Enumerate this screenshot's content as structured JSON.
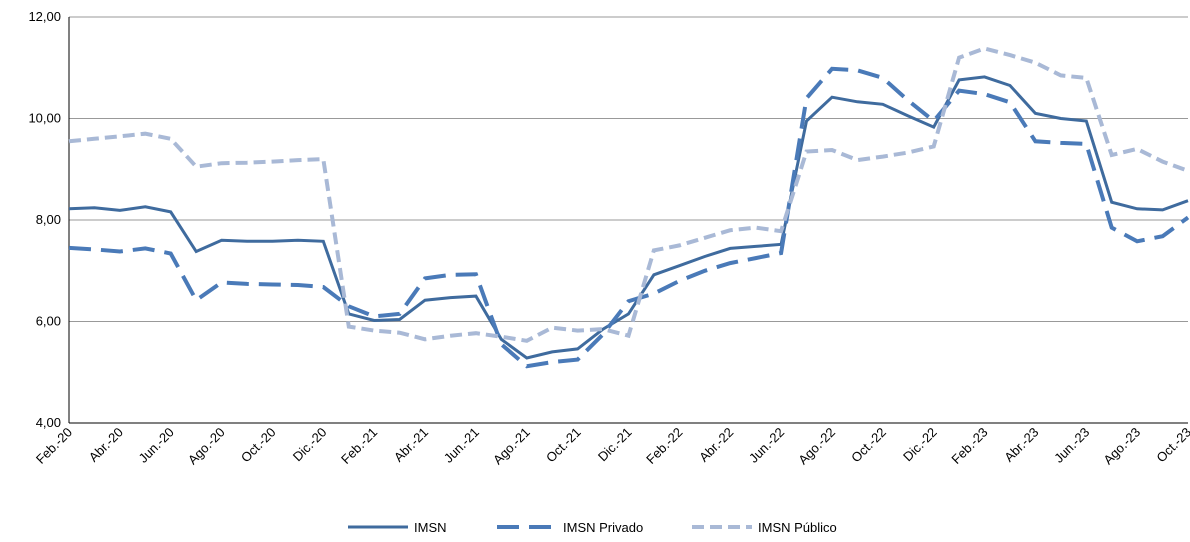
{
  "chart_data": {
    "type": "line",
    "categories": [
      "Feb.-20",
      null,
      "Abr.-20",
      null,
      "Jun.-20",
      null,
      "Ago.-20",
      null,
      "Oct.-20",
      null,
      "Dic.-20",
      null,
      "Feb.-21",
      null,
      "Abr.-21",
      null,
      "Jun.-21",
      null,
      "Ago.-21",
      null,
      "Oct.-21",
      null,
      "Dic.-21",
      null,
      "Feb.-22",
      null,
      "Abr.-22",
      null,
      "Jun.-22",
      null,
      "Ago.-22",
      null,
      "Oct.-22",
      null,
      "Dic.-22",
      null,
      "Feb.-23",
      null,
      "Abr.-23",
      null,
      "Jun.-23",
      null,
      "Ago.-23",
      null,
      "Oct.-23"
    ],
    "series": [
      {
        "name": "IMSN",
        "color": "#3f6b9e",
        "dash": "solid",
        "values": [
          8.22,
          8.24,
          8.19,
          8.26,
          8.16,
          7.38,
          7.6,
          7.58,
          7.58,
          7.6,
          7.58,
          6.15,
          6.02,
          6.04,
          6.42,
          6.47,
          6.5,
          5.65,
          5.28,
          5.4,
          5.46,
          5.85,
          6.15,
          6.92,
          7.1,
          7.28,
          7.44,
          7.48,
          7.52,
          9.95,
          10.42,
          10.33,
          10.28,
          10.05,
          9.83,
          10.76,
          10.82,
          10.65,
          10.1,
          10.0,
          9.95,
          8.35,
          8.22,
          8.2,
          8.38
        ]
      },
      {
        "name": "IMSN Privado",
        "color": "#4a7ab8",
        "dash": "long",
        "values": [
          7.45,
          7.42,
          7.38,
          7.44,
          7.34,
          6.42,
          6.77,
          6.74,
          6.73,
          6.72,
          6.68,
          6.3,
          6.1,
          6.15,
          6.85,
          6.92,
          6.93,
          5.55,
          5.12,
          5.2,
          5.25,
          5.75,
          6.4,
          6.55,
          6.8,
          7.0,
          7.15,
          7.25,
          7.35,
          10.4,
          10.98,
          10.95,
          10.8,
          10.35,
          9.95,
          10.55,
          10.48,
          10.32,
          9.55,
          9.52,
          9.5,
          7.85,
          7.58,
          7.68,
          8.05
        ]
      },
      {
        "name": "IMSN Público",
        "color": "#a9b9d6",
        "dash": "short",
        "values": [
          9.55,
          9.6,
          9.65,
          9.7,
          9.6,
          9.05,
          9.12,
          9.13,
          9.15,
          9.18,
          9.2,
          5.9,
          5.82,
          5.78,
          5.65,
          5.72,
          5.77,
          5.7,
          5.62,
          5.88,
          5.82,
          5.85,
          5.72,
          7.4,
          7.5,
          7.65,
          7.8,
          7.85,
          7.78,
          9.35,
          9.38,
          9.18,
          9.25,
          9.33,
          9.45,
          11.2,
          11.38,
          11.25,
          11.1,
          10.85,
          10.8,
          9.28,
          9.4,
          9.15,
          8.97
        ]
      }
    ],
    "ylim": [
      4,
      12
    ],
    "yticks": [
      {
        "value": 4,
        "label": "4,00"
      },
      {
        "value": 6,
        "label": "6,00"
      },
      {
        "value": 8,
        "label": "8,00"
      },
      {
        "value": 10,
        "label": "10,00"
      },
      {
        "value": 12,
        "label": "12,00"
      }
    ],
    "grid": true,
    "legend": "bottom"
  }
}
